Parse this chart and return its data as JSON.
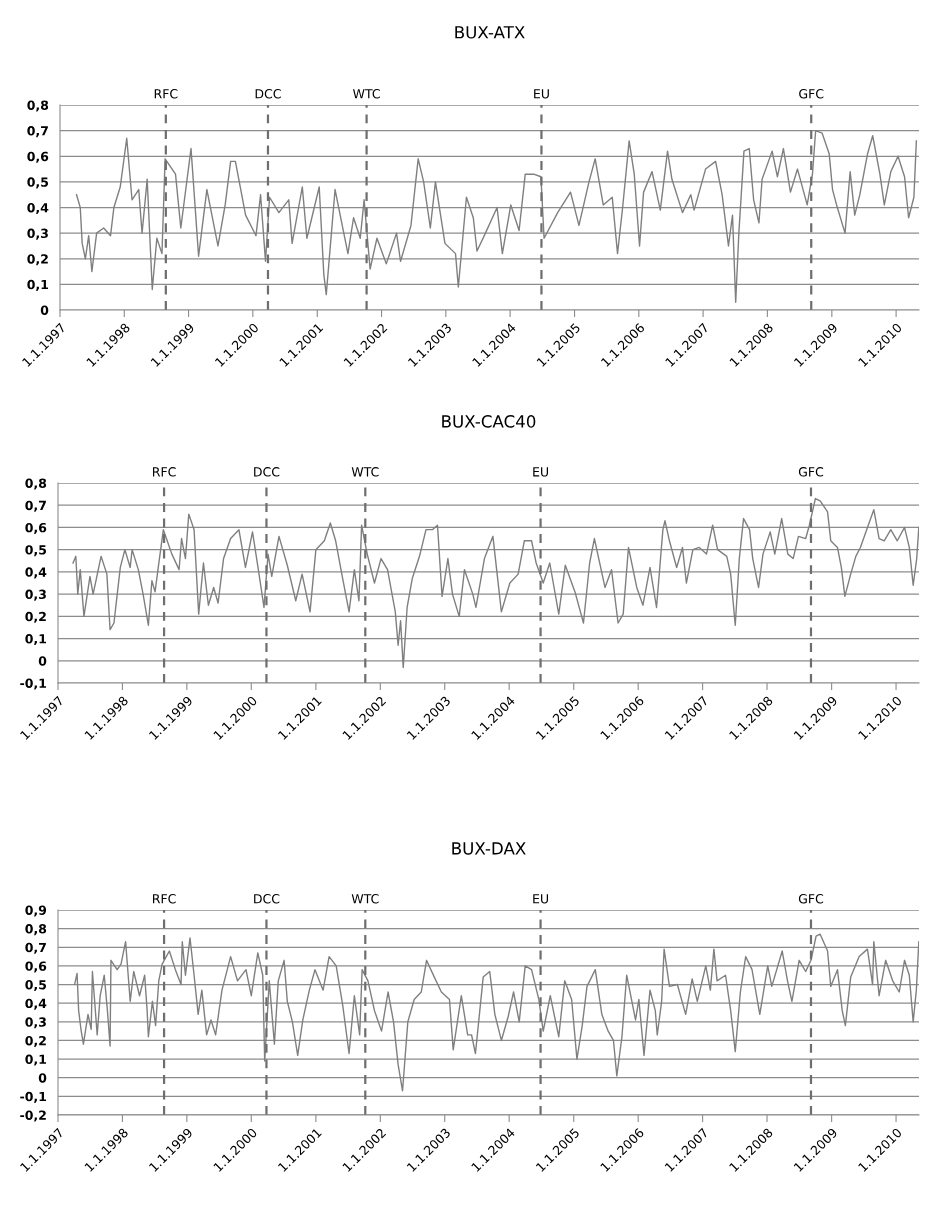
{
  "chart_data": [
    {
      "type": "line",
      "title": "BUX-ATX",
      "x": [
        "1997-04-05",
        "1997-04-26",
        "1997-05-07",
        "1997-05-25",
        "1997-06-13",
        "1997-07-01",
        "1997-07-28",
        "1997-09-06",
        "1997-10-15",
        "1997-11-03",
        "1997-12-09",
        "1998-01-15",
        "1998-02-14",
        "1998-03-24",
        "1998-04-12",
        "1998-05-11",
        "1998-06-09",
        "1998-07-05",
        "1998-08-03",
        "1998-08-21",
        "1998-10-19",
        "1998-11-18",
        "1999-01-15",
        "1999-02-27",
        "1999-04-15",
        "1999-06-17",
        "1999-07-28",
        "1999-08-28",
        "1999-09-24",
        "1999-11-21",
        "2000-01-19",
        "2000-02-14",
        "2000-03-13",
        "2000-04-05",
        "2000-05-28",
        "2000-07-23",
        "2000-08-11",
        "2000-10-08",
        "2000-11-03",
        "2001-01-12",
        "2001-02-07",
        "2001-02-21",
        "2001-04-12",
        "2001-06-24",
        "2001-07-26",
        "2001-09-02",
        "2001-09-24",
        "2001-10-28",
        "2001-12-06",
        "2002-01-28",
        "2002-03-27",
        "2002-04-19",
        "2002-06-17",
        "2002-07-28",
        "2002-08-28",
        "2002-10-05",
        "2002-11-03",
        "2002-12-27",
        "2003-02-25",
        "2003-03-13",
        "2003-04-28",
        "2003-06-06",
        "2003-06-27",
        "2003-08-14",
        "2003-10-19",
        "2003-11-18",
        "2004-01-05",
        "2004-02-21",
        "2004-03-27",
        "2004-05-14",
        "2004-06-24",
        "2004-07-12",
        "2004-09-27",
        "2004-12-09",
        "2005-01-26",
        "2005-03-24",
        "2005-04-28",
        "2005-06-13",
        "2005-08-03",
        "2005-09-02",
        "2005-10-01",
        "2005-11-07",
        "2005-12-06",
        "2006-01-05",
        "2006-01-28",
        "2006-03-17",
        "2006-05-03",
        "2006-06-13",
        "2006-07-08",
        "2006-09-06",
        "2006-10-23",
        "2006-11-11",
        "2007-01-15",
        "2007-03-13",
        "2007-04-19",
        "2007-05-25",
        "2007-06-17",
        "2007-07-05",
        "2007-07-23",
        "2007-08-21",
        "2007-09-20",
        "2007-10-15",
        "2007-11-14",
        "2007-12-02",
        "2008-01-28",
        "2008-02-27",
        "2008-04-01",
        "2008-05-11",
        "2008-06-20",
        "2008-08-14",
        "2008-09-13",
        "2008-10-01",
        "2008-11-07",
        "2008-12-17",
        "2009-01-05",
        "2009-01-28",
        "2009-03-17",
        "2009-04-15",
        "2009-05-11",
        "2009-06-09",
        "2009-07-23",
        "2009-08-21",
        "2009-10-01",
        "2009-10-26",
        "2009-12-02",
        "2010-01-12",
        "2010-02-18",
        "2010-03-13",
        "2010-04-12",
        "2010-04-26"
      ],
      "series": [
        {
          "color": "#7f7f7f",
          "values": [
            0.45,
            0.4,
            0.26,
            0.2,
            0.29,
            0.15,
            0.3,
            0.32,
            0.29,
            0.4,
            0.48,
            0.67,
            0.43,
            0.47,
            0.3,
            0.51,
            0.08,
            0.28,
            0.22,
            0.59,
            0.53,
            0.32,
            0.63,
            0.21,
            0.47,
            0.25,
            0.41,
            0.58,
            0.58,
            0.37,
            0.29,
            0.45,
            0.19,
            0.44,
            0.38,
            0.43,
            0.26,
            0.48,
            0.28,
            0.48,
            0.14,
            0.06,
            0.47,
            0.22,
            0.36,
            0.28,
            0.43,
            0.16,
            0.28,
            0.18,
            0.3,
            0.19,
            0.33,
            0.59,
            0.5,
            0.32,
            0.5,
            0.26,
            0.22,
            0.09,
            0.44,
            0.36,
            0.23,
            0.3,
            0.4,
            0.22,
            0.41,
            0.31,
            0.53,
            0.53,
            0.52,
            0.28,
            0.38,
            0.46,
            0.33,
            0.5,
            0.59,
            0.41,
            0.44,
            0.22,
            0.4,
            0.66,
            0.53,
            0.25,
            0.46,
            0.54,
            0.39,
            0.62,
            0.51,
            0.38,
            0.45,
            0.39,
            0.55,
            0.58,
            0.45,
            0.25,
            0.37,
            0.03,
            0.3,
            0.62,
            0.63,
            0.43,
            0.34,
            0.51,
            0.62,
            0.52,
            0.63,
            0.46,
            0.55,
            0.41,
            0.53,
            0.7,
            0.69,
            0.61,
            0.47,
            0.41,
            0.3,
            0.54,
            0.37,
            0.45,
            0.61,
            0.68,
            0.53,
            0.41,
            0.54,
            0.6,
            0.52,
            0.36,
            0.44,
            0.66
          ]
        }
      ],
      "xlim": [
        "1997-01-01",
        "2010-05-11"
      ],
      "xticks": [
        {
          "value": "1997-01-01",
          "label": "1.1.1997"
        },
        {
          "value": "1998-01-01",
          "label": "1.1.1998"
        },
        {
          "value": "1999-01-01",
          "label": "1.1.1999"
        },
        {
          "value": "2000-01-01",
          "label": "1.1.2000"
        },
        {
          "value": "2001-01-01",
          "label": "1.1.2001"
        },
        {
          "value": "2002-01-01",
          "label": "1.1.2002"
        },
        {
          "value": "2003-01-01",
          "label": "1.1.2003"
        },
        {
          "value": "2004-01-01",
          "label": "1.1.2004"
        },
        {
          "value": "2005-01-01",
          "label": "1.1.2005"
        },
        {
          "value": "2006-01-01",
          "label": "1.1.2006"
        },
        {
          "value": "2007-01-01",
          "label": "1.1.2007"
        },
        {
          "value": "2008-01-01",
          "label": "1.1.2008"
        },
        {
          "value": "2009-01-01",
          "label": "1.1.2009"
        },
        {
          "value": "2010-01-01",
          "label": "1.1.2010"
        }
      ],
      "ylim": [
        0,
        0.8
      ],
      "yticks": [
        0,
        {
          "value": 0.1,
          "label": "0,1"
        },
        {
          "value": 0.2,
          "label": "0,2"
        },
        {
          "value": 0.3,
          "label": "0,3"
        },
        {
          "value": 0.4,
          "label": "0,4"
        },
        {
          "value": 0.5,
          "label": "0,5"
        },
        {
          "value": 0.6,
          "label": "0,6"
        },
        {
          "value": 0.7,
          "label": "0,7"
        },
        {
          "value": 0.8,
          "label": "0,8"
        }
      ],
      "grid": "y",
      "ref_lines": [
        {
          "axis": "x",
          "value": "1998-08-25",
          "label": "RFC",
          "color": "#6e6e6e",
          "line_style": "dashed"
        },
        {
          "axis": "x",
          "value": "2000-03-27",
          "label": "DCC",
          "color": "#6e6e6e",
          "line_style": "dashed"
        },
        {
          "axis": "x",
          "value": "2001-10-08",
          "label": "WTC",
          "color": "#6e6e6e",
          "line_style": "dashed"
        },
        {
          "axis": "x",
          "value": "2004-06-27",
          "label": "EU",
          "color": "#6e6e6e",
          "line_style": "dashed"
        },
        {
          "axis": "x",
          "value": "2008-09-06",
          "label": "GFC",
          "color": "#6e6e6e",
          "line_style": "dashed"
        }
      ]
    },
    {
      "type": "line",
      "title": "BUX-CAC40",
      "x": [
        "1997-03-27",
        "1997-04-12",
        "1997-04-23",
        "1997-05-07",
        "1997-05-28",
        "1997-07-01",
        "1997-07-19",
        "1997-09-02",
        "1997-10-05",
        "1997-10-23",
        "1997-11-14",
        "1997-12-20",
        "1998-01-15",
        "1998-02-14",
        "1998-02-25",
        "1998-04-01",
        "1998-04-28",
        "1998-05-28",
        "1998-06-17",
        "1998-07-05",
        "1998-07-23",
        "1998-08-21",
        "1998-10-08",
        "1998-11-18",
        "1998-12-02",
        "1998-12-24",
        "1999-01-12",
        "1999-02-11",
        "1999-03-09",
        "1999-04-05",
        "1999-05-03",
        "1999-06-02",
        "1999-06-27",
        "1999-07-28",
        "1999-09-06",
        "1999-10-23",
        "1999-11-29",
        "2000-01-08",
        "2000-02-14",
        "2000-03-13",
        "2000-04-05",
        "2000-04-26",
        "2000-06-06",
        "2000-07-23",
        "2000-09-09",
        "2000-10-15",
        "2000-11-29",
        "2001-01-01",
        "2001-02-18",
        "2001-03-24",
        "2001-04-23",
        "2001-05-28",
        "2001-07-08",
        "2001-08-07",
        "2001-09-02",
        "2001-09-17",
        "2001-10-19",
        "2001-11-29",
        "2002-01-05",
        "2002-02-11",
        "2002-03-27",
        "2002-04-12",
        "2002-04-26",
        "2002-05-11",
        "2002-06-02",
        "2002-07-01",
        "2002-08-11",
        "2002-09-17",
        "2002-10-23",
        "2002-11-21",
        "2002-12-17",
        "2003-01-19",
        "2003-02-14",
        "2003-03-24",
        "2003-04-23",
        "2003-06-09",
        "2003-06-27",
        "2003-08-14",
        "2003-10-01",
        "2003-11-18",
        "2004-01-05",
        "2004-02-21",
        "2004-03-27",
        "2004-05-07",
        "2004-06-02",
        "2004-07-12",
        "2004-08-18",
        "2004-10-08",
        "2004-11-14",
        "2005-01-08",
        "2005-02-25",
        "2005-04-01",
        "2005-04-28",
        "2005-06-27",
        "2005-08-03",
        "2005-09-09",
        "2005-10-08",
        "2005-11-07",
        "2005-12-24",
        "2006-01-28",
        "2006-03-09",
        "2006-04-15",
        "2006-05-21",
        "2006-06-02",
        "2006-06-27",
        "2006-08-07",
        "2006-09-09",
        "2006-10-01",
        "2006-11-07",
        "2006-12-13",
        "2007-01-23",
        "2007-02-27",
        "2007-03-27",
        "2007-05-18",
        "2007-06-09",
        "2007-07-05",
        "2007-07-28",
        "2007-08-21",
        "2007-09-24",
        "2007-10-12",
        "2007-11-14",
        "2007-12-09",
        "2008-01-19",
        "2008-02-14",
        "2008-03-24",
        "2008-04-28",
        "2008-05-28",
        "2008-06-27",
        "2008-08-07",
        "2008-08-28",
        "2008-10-01",
        "2008-10-28",
        "2008-12-09",
        "2008-12-27",
        "2009-02-03",
        "2009-02-25",
        "2009-03-17",
        "2009-04-19",
        "2009-05-18",
        "2009-06-13",
        "2009-07-23",
        "2009-08-28",
        "2009-09-27",
        "2009-10-26",
        "2009-12-02",
        "2010-01-08",
        "2010-02-18",
        "2010-03-17",
        "2010-04-08",
        "2010-04-28",
        "2010-05-10"
      ],
      "series": [
        {
          "color": "#7f7f7f",
          "values": [
            0.44,
            0.47,
            0.3,
            0.41,
            0.2,
            0.38,
            0.3,
            0.47,
            0.39,
            0.14,
            0.17,
            0.42,
            0.5,
            0.42,
            0.5,
            0.41,
            0.3,
            0.16,
            0.36,
            0.31,
            0.42,
            0.59,
            0.48,
            0.41,
            0.55,
            0.46,
            0.66,
            0.59,
            0.21,
            0.44,
            0.25,
            0.33,
            0.26,
            0.46,
            0.55,
            0.59,
            0.42,
            0.58,
            0.39,
            0.24,
            0.48,
            0.38,
            0.56,
            0.43,
            0.27,
            0.39,
            0.22,
            0.5,
            0.54,
            0.62,
            0.54,
            0.39,
            0.22,
            0.41,
            0.27,
            0.61,
            0.48,
            0.35,
            0.46,
            0.41,
            0.22,
            0.07,
            0.18,
            -0.03,
            0.24,
            0.37,
            0.47,
            0.59,
            0.59,
            0.61,
            0.29,
            0.46,
            0.3,
            0.2,
            0.41,
            0.3,
            0.24,
            0.46,
            0.56,
            0.22,
            0.35,
            0.39,
            0.54,
            0.54,
            0.44,
            0.35,
            0.44,
            0.21,
            0.43,
            0.31,
            0.17,
            0.44,
            0.55,
            0.33,
            0.41,
            0.17,
            0.21,
            0.51,
            0.33,
            0.25,
            0.42,
            0.24,
            0.59,
            0.63,
            0.54,
            0.42,
            0.51,
            0.35,
            0.5,
            0.51,
            0.48,
            0.61,
            0.5,
            0.47,
            0.39,
            0.16,
            0.46,
            0.64,
            0.59,
            0.46,
            0.33,
            0.48,
            0.58,
            0.48,
            0.64,
            0.48,
            0.46,
            0.56,
            0.55,
            0.61,
            0.73,
            0.72,
            0.67,
            0.54,
            0.51,
            0.42,
            0.29,
            0.39,
            0.47,
            0.51,
            0.6,
            0.68,
            0.55,
            0.54,
            0.59,
            0.54,
            0.6,
            0.51,
            0.34,
            0.46,
            0.6
          ]
        }
      ],
      "xlim": [
        "1997-01-01",
        "2010-05-11"
      ],
      "xticks": [
        {
          "value": "1997-01-01",
          "label": "1.1.1997"
        },
        {
          "value": "1998-01-01",
          "label": "1.1.1998"
        },
        {
          "value": "1999-01-01",
          "label": "1.1.1999"
        },
        {
          "value": "2000-01-01",
          "label": "1.1.2000"
        },
        {
          "value": "2001-01-01",
          "label": "1.1.2001"
        },
        {
          "value": "2002-01-01",
          "label": "1.1.2002"
        },
        {
          "value": "2003-01-01",
          "label": "1.1.2003"
        },
        {
          "value": "2004-01-01",
          "label": "1.1.2004"
        },
        {
          "value": "2005-01-01",
          "label": "1.1.2005"
        },
        {
          "value": "2006-01-01",
          "label": "1.1.2006"
        },
        {
          "value": "2007-01-01",
          "label": "1.1.2007"
        },
        {
          "value": "2008-01-01",
          "label": "1.1.2008"
        },
        {
          "value": "2009-01-01",
          "label": "1.1.2009"
        },
        {
          "value": "2010-01-01",
          "label": "1.1.2010"
        }
      ],
      "ylim": [
        -0.1,
        0.8
      ],
      "yticks": [
        {
          "value": -0.1,
          "label": "-0,1"
        },
        0,
        {
          "value": 0.1,
          "label": "0,1"
        },
        {
          "value": 0.2,
          "label": "0,2"
        },
        {
          "value": 0.3,
          "label": "0,3"
        },
        {
          "value": 0.4,
          "label": "0,4"
        },
        {
          "value": 0.5,
          "label": "0,5"
        },
        {
          "value": 0.6,
          "label": "0,6"
        },
        {
          "value": 0.7,
          "label": "0,7"
        },
        {
          "value": 0.8,
          "label": "0,8"
        }
      ],
      "grid": "y",
      "ref_lines": [
        {
          "axis": "x",
          "value": "1998-08-25",
          "label": "RFC",
          "color": "#6e6e6e",
          "line_style": "dashed"
        },
        {
          "axis": "x",
          "value": "2000-03-27",
          "label": "DCC",
          "color": "#6e6e6e",
          "line_style": "dashed"
        },
        {
          "axis": "x",
          "value": "2001-10-08",
          "label": "WTC",
          "color": "#6e6e6e",
          "line_style": "dashed"
        },
        {
          "axis": "x",
          "value": "2004-06-27",
          "label": "EU",
          "color": "#6e6e6e",
          "line_style": "dashed"
        },
        {
          "axis": "x",
          "value": "2008-09-06",
          "label": "GFC",
          "color": "#6e6e6e",
          "line_style": "dashed"
        }
      ]
    },
    {
      "type": "line",
      "title": "BUX-DAX",
      "x": [
        "1997-04-05",
        "1997-04-19",
        "1997-04-28",
        "1997-05-11",
        "1997-05-25",
        "1997-06-20",
        "1997-07-08",
        "1997-07-15",
        "1997-08-11",
        "1997-08-28",
        "1997-09-20",
        "1997-10-08",
        "1997-10-23",
        "1997-10-28",
        "1997-12-02",
        "1997-12-24",
        "1998-01-19",
        "1998-02-14",
        "1998-03-06",
        "1998-04-08",
        "1998-05-07",
        "1998-05-21",
        "1998-05-28",
        "1998-06-20",
        "1998-07-08",
        "1998-07-26",
        "1998-08-14",
        "1998-09-24",
        "1998-10-28",
        "1998-11-29",
        "1998-12-06",
        "1998-12-24",
        "1999-01-19",
        "1999-02-11",
        "1999-03-06",
        "1999-03-27",
        "1999-04-23",
        "1999-05-18",
        "1999-06-13",
        "1999-07-19",
        "1999-09-06",
        "1999-10-15",
        "1999-12-02",
        "2000-01-01",
        "2000-02-07",
        "2000-03-06",
        "2000-03-17",
        "2000-04-12",
        "2000-05-11",
        "2000-06-02",
        "2000-07-05",
        "2000-07-23",
        "2000-08-21",
        "2000-09-20",
        "2000-10-19",
        "2000-11-25",
        "2000-12-27",
        "2001-02-11",
        "2001-03-17",
        "2001-04-26",
        "2001-06-02",
        "2001-07-08",
        "2001-08-07",
        "2001-09-06",
        "2001-09-20",
        "2001-10-23",
        "2001-11-29",
        "2002-01-08",
        "2002-02-14",
        "2002-03-17",
        "2002-04-12",
        "2002-05-07",
        "2002-06-06",
        "2002-07-12",
        "2002-08-21",
        "2002-09-20",
        "2002-11-03",
        "2002-12-13",
        "2003-01-28",
        "2003-02-18",
        "2003-04-05",
        "2003-05-11",
        "2003-06-02",
        "2003-06-24",
        "2003-08-07",
        "2003-09-13",
        "2003-10-12",
        "2003-11-18",
        "2003-12-27",
        "2004-01-26",
        "2004-02-27",
        "2004-04-01",
        "2004-05-07",
        "2004-06-17",
        "2004-07-12",
        "2004-08-21",
        "2004-10-08",
        "2004-11-11",
        "2004-12-20",
        "2005-01-19",
        "2005-02-18",
        "2005-03-17",
        "2005-05-03",
        "2005-06-09",
        "2005-07-15",
        "2005-08-14",
        "2005-09-02",
        "2005-10-01",
        "2005-10-28",
        "2005-12-17",
        "2006-01-05",
        "2006-02-03",
        "2006-03-09",
        "2006-04-08",
        "2006-04-19",
        "2006-05-14",
        "2006-05-28",
        "2006-06-27",
        "2006-08-11",
        "2006-09-27",
        "2006-11-03",
        "2006-12-02",
        "2007-01-19",
        "2007-02-14",
        "2007-03-06",
        "2007-03-24",
        "2007-05-11",
        "2007-06-09",
        "2007-07-05",
        "2007-08-03",
        "2007-09-02",
        "2007-10-08",
        "2007-11-21",
        "2008-01-05",
        "2008-01-28",
        "2008-03-27",
        "2008-04-26",
        "2008-05-21",
        "2008-07-01",
        "2008-08-07",
        "2008-09-06",
        "2008-10-05",
        "2008-10-28",
        "2008-12-09",
        "2008-12-27",
        "2009-02-03",
        "2009-03-02",
        "2009-03-20",
        "2009-04-19",
        "2009-06-06",
        "2009-07-23",
        "2009-08-21",
        "2009-08-28",
        "2009-09-27",
        "2009-11-03",
        "2009-12-13",
        "2010-01-19",
        "2010-02-18",
        "2010-03-17",
        "2010-04-08",
        "2010-04-26",
        "2010-05-10"
      ],
      "series": [
        {
          "color": "#7f7f7f",
          "values": [
            0.5,
            0.56,
            0.36,
            0.26,
            0.18,
            0.34,
            0.26,
            0.57,
            0.23,
            0.44,
            0.55,
            0.36,
            0.17,
            0.63,
            0.58,
            0.61,
            0.73,
            0.41,
            0.57,
            0.44,
            0.55,
            0.36,
            0.22,
            0.41,
            0.28,
            0.52,
            0.61,
            0.68,
            0.58,
            0.5,
            0.73,
            0.55,
            0.75,
            0.55,
            0.34,
            0.47,
            0.23,
            0.31,
            0.23,
            0.47,
            0.65,
            0.52,
            0.58,
            0.44,
            0.67,
            0.55,
            0.09,
            0.52,
            0.18,
            0.52,
            0.63,
            0.41,
            0.3,
            0.12,
            0.31,
            0.47,
            0.58,
            0.47,
            0.65,
            0.6,
            0.39,
            0.13,
            0.44,
            0.23,
            0.58,
            0.52,
            0.36,
            0.25,
            0.46,
            0.3,
            0.07,
            -0.07,
            0.3,
            0.42,
            0.46,
            0.63,
            0.54,
            0.46,
            0.42,
            0.15,
            0.44,
            0.23,
            0.23,
            0.13,
            0.54,
            0.57,
            0.34,
            0.2,
            0.33,
            0.46,
            0.3,
            0.6,
            0.58,
            0.42,
            0.25,
            0.44,
            0.22,
            0.52,
            0.42,
            0.1,
            0.28,
            0.49,
            0.58,
            0.34,
            0.25,
            0.2,
            0.01,
            0.22,
            0.55,
            0.31,
            0.42,
            0.12,
            0.47,
            0.36,
            0.23,
            0.41,
            0.69,
            0.49,
            0.5,
            0.34,
            0.53,
            0.41,
            0.6,
            0.47,
            0.69,
            0.52,
            0.55,
            0.36,
            0.14,
            0.46,
            0.65,
            0.58,
            0.34,
            0.6,
            0.49,
            0.68,
            0.52,
            0.41,
            0.63,
            0.57,
            0.63,
            0.76,
            0.77,
            0.68,
            0.49,
            0.58,
            0.36,
            0.28,
            0.54,
            0.65,
            0.69,
            0.5,
            0.73,
            0.44,
            0.63,
            0.52,
            0.46,
            0.63,
            0.55,
            0.3,
            0.47,
            0.73
          ]
        }
      ],
      "xlim": [
        "1997-01-01",
        "2010-05-11"
      ],
      "xticks": [
        {
          "value": "1997-01-01",
          "label": "1.1.1997"
        },
        {
          "value": "1998-01-01",
          "label": "1.1.1998"
        },
        {
          "value": "1999-01-01",
          "label": "1.1.1999"
        },
        {
          "value": "2000-01-01",
          "label": "1.1.2000"
        },
        {
          "value": "2001-01-01",
          "label": "1.1.2001"
        },
        {
          "value": "2002-01-01",
          "label": "1.1.2002"
        },
        {
          "value": "2003-01-01",
          "label": "1.1.2003"
        },
        {
          "value": "2004-01-01",
          "label": "1.1.2004"
        },
        {
          "value": "2005-01-01",
          "label": "1.1.2005"
        },
        {
          "value": "2006-01-01",
          "label": "1.1.2006"
        },
        {
          "value": "2007-01-01",
          "label": "1.1.2007"
        },
        {
          "value": "2008-01-01",
          "label": "1.1.2008"
        },
        {
          "value": "2009-01-01",
          "label": "1.1.2009"
        },
        {
          "value": "2010-01-01",
          "label": "1.1.2010"
        }
      ],
      "ylim": [
        -0.2,
        0.9
      ],
      "yticks": [
        {
          "value": -0.2,
          "label": "-0,2"
        },
        {
          "value": -0.1,
          "label": "-0,1"
        },
        0,
        {
          "value": 0.1,
          "label": "0,1"
        },
        {
          "value": 0.2,
          "label": "0,2"
        },
        {
          "value": 0.3,
          "label": "0,3"
        },
        {
          "value": 0.4,
          "label": "0,4"
        },
        {
          "value": 0.5,
          "label": "0,5"
        },
        {
          "value": 0.6,
          "label": "0,6"
        },
        {
          "value": 0.7,
          "label": "0,7"
        },
        {
          "value": 0.8,
          "label": "0,8"
        },
        {
          "value": 0.9,
          "label": "0,9"
        }
      ],
      "grid": "y",
      "ref_lines": [
        {
          "axis": "x",
          "value": "1998-08-25",
          "label": "RFC",
          "color": "#6e6e6e",
          "line_style": "dashed"
        },
        {
          "axis": "x",
          "value": "2000-03-27",
          "label": "DCC",
          "color": "#6e6e6e",
          "line_style": "dashed"
        },
        {
          "axis": "x",
          "value": "2001-10-08",
          "label": "WTC",
          "color": "#6e6e6e",
          "line_style": "dashed"
        },
        {
          "axis": "x",
          "value": "2004-06-27",
          "label": "EU",
          "color": "#6e6e6e",
          "line_style": "dashed"
        },
        {
          "axis": "x",
          "value": "2008-09-06",
          "label": "GFC",
          "color": "#6e6e6e",
          "line_style": "dashed"
        }
      ]
    }
  ]
}
